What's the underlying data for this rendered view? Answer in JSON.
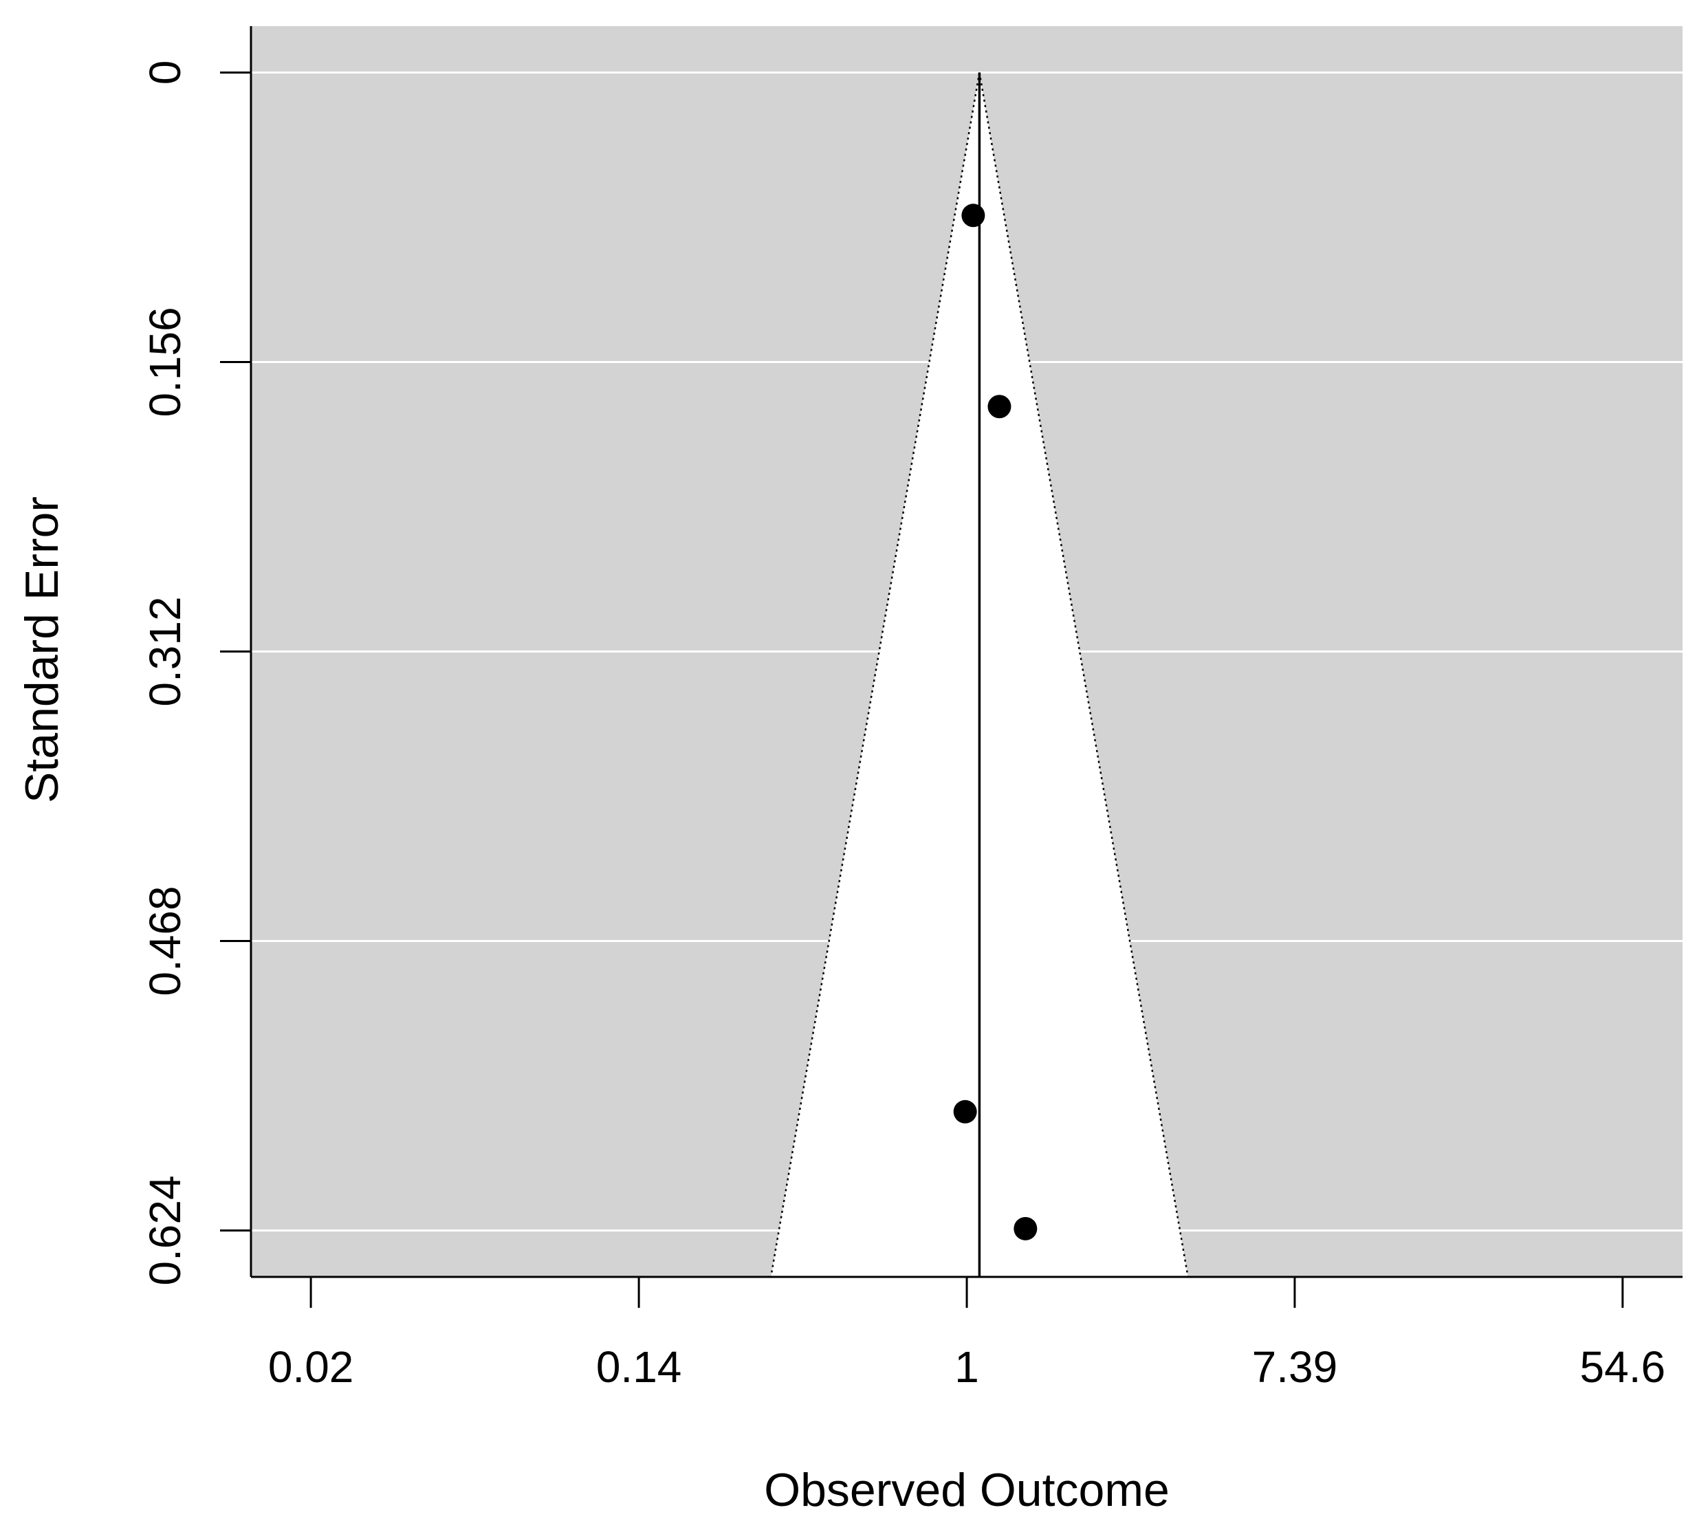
{
  "chart_data": {
    "type": "scatter",
    "subtype": "funnel",
    "xlabel": "Observed Outcome",
    "ylabel": "Standard Error",
    "x_scale": "log",
    "x_ticks": [
      {
        "value": 0.0183,
        "label": "0.02"
      },
      {
        "value": 0.1353,
        "label": "0.14"
      },
      {
        "value": 1,
        "label": "1"
      },
      {
        "value": 7.389,
        "label": "7.39"
      },
      {
        "value": 54.6,
        "label": "54.6"
      }
    ],
    "xlim": [
      0.0127,
      78.7
    ],
    "y_ticks": [
      {
        "value": 0,
        "label": "0"
      },
      {
        "value": 0.156,
        "label": "0.156"
      },
      {
        "value": 0.312,
        "label": "0.312"
      },
      {
        "value": 0.468,
        "label": "0.468"
      },
      {
        "value": 0.624,
        "label": "0.624"
      }
    ],
    "ylim": [
      0.649,
      -0.025
    ],
    "y_reversed": true,
    "grid": true,
    "pooled_estimate": 1.08,
    "funnel": {
      "center": 1.08,
      "z": 1.96,
      "se_max": 0.649
    },
    "points": [
      {
        "x": 1.04,
        "y": 0.077
      },
      {
        "x": 1.22,
        "y": 0.18
      },
      {
        "x": 0.99,
        "y": 0.56
      },
      {
        "x": 1.43,
        "y": 0.623
      }
    ]
  },
  "colors": {
    "panel_bg": "#d3d3d3",
    "funnel_fill": "#ffffff",
    "grid": "#ffffff",
    "axis": "#000000",
    "points": "#000000"
  }
}
